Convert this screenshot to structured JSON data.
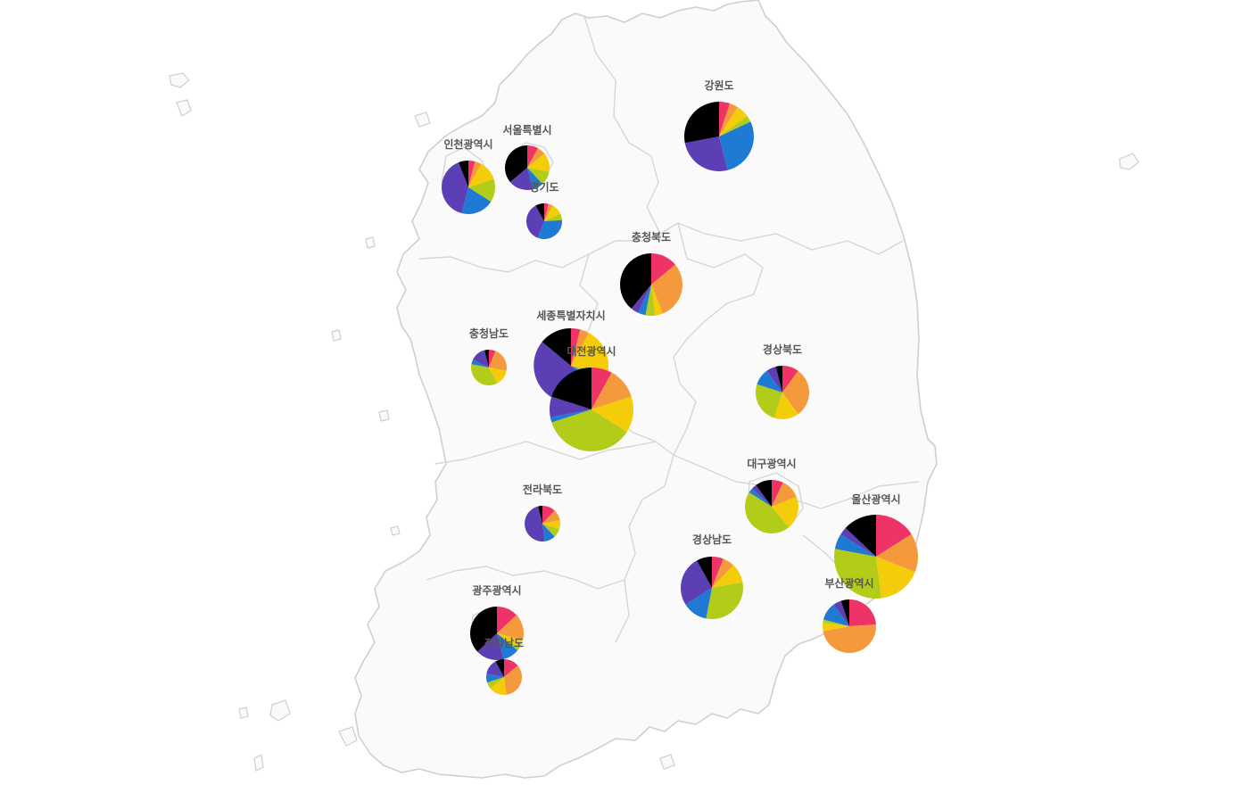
{
  "slice_colors": [
    "#ee3366",
    "#f59a3c",
    "#f5cc0a",
    "#b3cc1a",
    "#1f7ad4",
    "#5c3fb4",
    "#000000"
  ],
  "regions": [
    {
      "name": "강원도",
      "values": [
        5,
        4,
        6,
        3,
        28,
        26,
        28
      ]
    },
    {
      "name": "서울특별시",
      "values": [
        8,
        6,
        14,
        10,
        8,
        18,
        36
      ]
    },
    {
      "name": "인천광역시",
      "values": [
        4,
        4,
        12,
        14,
        20,
        40,
        6
      ]
    },
    {
      "name": "경기도",
      "values": [
        4,
        4,
        10,
        6,
        32,
        36,
        8
      ]
    },
    {
      "name": "충청북도",
      "values": [
        14,
        30,
        4,
        5,
        4,
        4,
        39
      ]
    },
    {
      "name": "세종특별자치시",
      "values": [
        4,
        4,
        20,
        4,
        4,
        50,
        14
      ]
    },
    {
      "name": "충청남도",
      "values": [
        6,
        22,
        14,
        36,
        4,
        14,
        4
      ]
    },
    {
      "name": "대전광역시",
      "values": [
        8,
        12,
        14,
        36,
        2,
        8,
        20
      ]
    },
    {
      "name": "경상북도",
      "values": [
        10,
        30,
        15,
        25,
        10,
        6,
        4
      ]
    },
    {
      "name": "대구광역시",
      "values": [
        7,
        12,
        20,
        45,
        3,
        3,
        10
      ]
    },
    {
      "name": "전라북도",
      "values": [
        12,
        10,
        8,
        8,
        10,
        48,
        4
      ]
    },
    {
      "name": "울산광역시",
      "values": [
        16,
        15,
        17,
        30,
        6,
        3,
        13
      ]
    },
    {
      "name": "경상남도",
      "values": [
        6,
        6,
        10,
        31,
        13,
        26,
        8
      ]
    },
    {
      "name": "부산광역시",
      "values": [
        24,
        48,
        5,
        2,
        11,
        5,
        5
      ]
    },
    {
      "name": "광주광역시",
      "values": [
        13,
        16,
        5,
        2,
        10,
        17,
        37
      ]
    },
    {
      "name": "전라남도",
      "values": [
        14,
        34,
        16,
        6,
        8,
        14,
        8
      ]
    }
  ]
}
